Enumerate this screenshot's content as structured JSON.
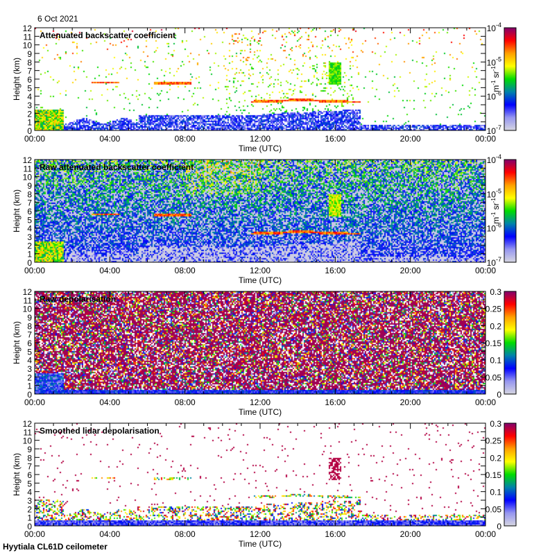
{
  "date": "6 Oct 2021",
  "footer": "Hyytiala CL61D ceilometer",
  "chart_data": [
    {
      "type": "heatmap",
      "title": "Attenuated backscatter coefficient",
      "xlabel": "Time (UTC)",
      "ylabel": "Height (km)",
      "xticks": [
        "00:00",
        "04:00",
        "08:00",
        "12:00",
        "16:00",
        "20:00",
        "00:00"
      ],
      "yticks": [
        0,
        1,
        2,
        3,
        4,
        5,
        6,
        7,
        8,
        9,
        10,
        11,
        12
      ],
      "ylim": [
        0,
        12
      ],
      "colorbar": {
        "scale": "log",
        "range": [
          1e-07,
          0.0001
        ],
        "ticks": [
          {
            "base": "10",
            "exp": "-7"
          },
          {
            "base": "10",
            "exp": "-6"
          },
          {
            "base": "10",
            "exp": "-5"
          },
          {
            "base": "10",
            "exp": "-4"
          }
        ],
        "label": "m-1 sr-1",
        "label_parts": [
          "m",
          "-1",
          " sr",
          "-1"
        ]
      }
    },
    {
      "type": "heatmap",
      "title": "Raw attenuated backscatter coefficient",
      "xlabel": "Time (UTC)",
      "ylabel": "Height (km)",
      "xticks": [
        "00:00",
        "04:00",
        "08:00",
        "12:00",
        "16:00",
        "20:00",
        "00:00"
      ],
      "yticks": [
        0,
        1,
        2,
        3,
        4,
        5,
        6,
        7,
        8,
        9,
        10,
        11,
        12
      ],
      "ylim": [
        0,
        12
      ],
      "colorbar": {
        "scale": "log",
        "range": [
          1e-07,
          0.0001
        ],
        "ticks": [
          {
            "base": "10",
            "exp": "-7"
          },
          {
            "base": "10",
            "exp": "-6"
          },
          {
            "base": "10",
            "exp": "-5"
          },
          {
            "base": "10",
            "exp": "-4"
          }
        ],
        "label": "m-1 sr-1",
        "label_parts": [
          "m",
          "-1",
          " sr",
          "-1"
        ]
      }
    },
    {
      "type": "heatmap",
      "title": "Raw depolarisation",
      "xlabel": "Time (UTC)",
      "ylabel": "Height (km)",
      "xticks": [
        "00:00",
        "04:00",
        "08:00",
        "12:00",
        "16:00",
        "20:00",
        "00:00"
      ],
      "yticks": [
        0,
        1,
        2,
        3,
        4,
        5,
        6,
        7,
        8,
        9,
        10,
        11,
        12
      ],
      "ylim": [
        0,
        12
      ],
      "colorbar": {
        "scale": "linear",
        "range": [
          0,
          0.3
        ],
        "ticks": [
          "0",
          "0.05",
          "0.1",
          "0.15",
          "0.2",
          "0.25",
          "0.3"
        ]
      }
    },
    {
      "type": "heatmap",
      "title": "Smoothed lidar depolarisation",
      "xlabel": "Time (UTC)",
      "ylabel": "Height (km)",
      "xticks": [
        "00:00",
        "04:00",
        "08:00",
        "12:00",
        "16:00",
        "20:00",
        "00:00"
      ],
      "yticks": [
        0,
        1,
        2,
        3,
        4,
        5,
        6,
        7,
        8,
        9,
        10,
        11,
        12
      ],
      "ylim": [
        0,
        12
      ],
      "colorbar": {
        "scale": "linear",
        "range": [
          0,
          0.3
        ],
        "ticks": [
          "0",
          "0.05",
          "0.1",
          "0.15",
          "0.2",
          "0.25",
          "0.3"
        ]
      }
    }
  ]
}
